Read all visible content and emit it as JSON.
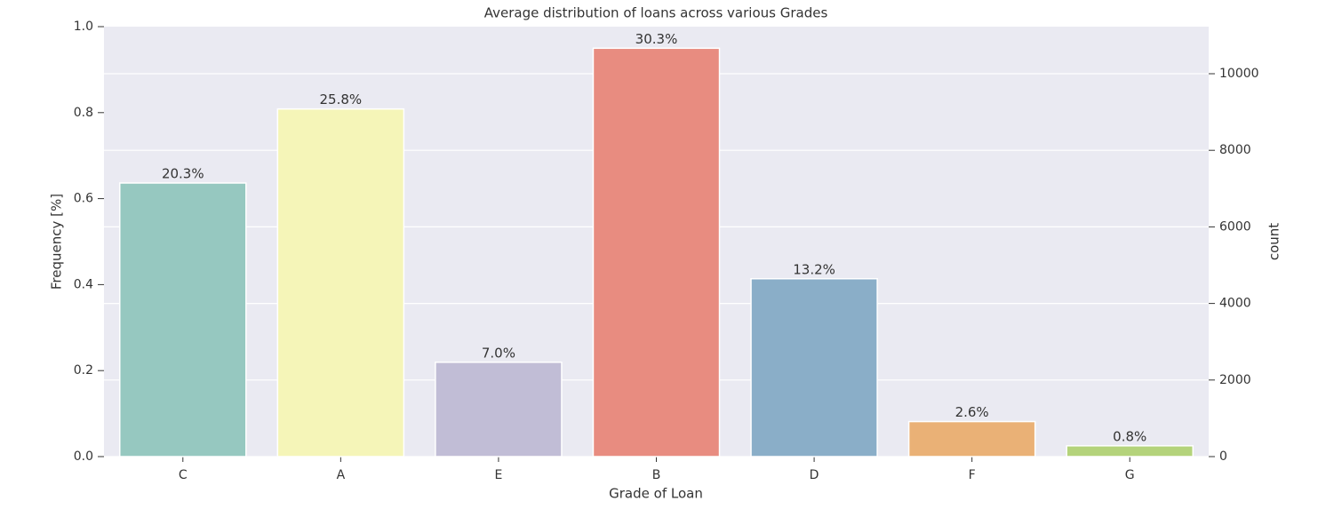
{
  "chart_data": {
    "type": "bar",
    "title": "Average distribution of loans across various Grades",
    "x_label": "Grade of Loan",
    "y_label": "Frequency [%]",
    "y2_label": "count",
    "categories": [
      "C",
      "A",
      "E",
      "B",
      "D",
      "F",
      "G"
    ],
    "values": [
      7146,
      9080,
      2464,
      10666,
      4646,
      915,
      282
    ],
    "axis": "y2",
    "annotations": [
      "20.3%",
      "25.8%",
      "7.0%",
      "30.3%",
      "13.2%",
      "2.6%",
      "0.8%"
    ],
    "colors": [
      "#96c8c0",
      "#f5f5b8",
      "#c1bdd6",
      "#e88c80",
      "#8aaec8",
      "#eab176",
      "#b4d37b"
    ],
    "ylim": [
      0,
      1
    ],
    "yticks": [
      {
        "value": 0,
        "label": "0.0"
      },
      0.2,
      0.4,
      0.6,
      0.8,
      {
        "value": 1,
        "label": "1.0"
      }
    ],
    "y2lim": [
      0,
      11230
    ],
    "y2ticks": [
      0,
      2000,
      4000,
      6000,
      8000,
      10000
    ],
    "grid": "y2"
  }
}
